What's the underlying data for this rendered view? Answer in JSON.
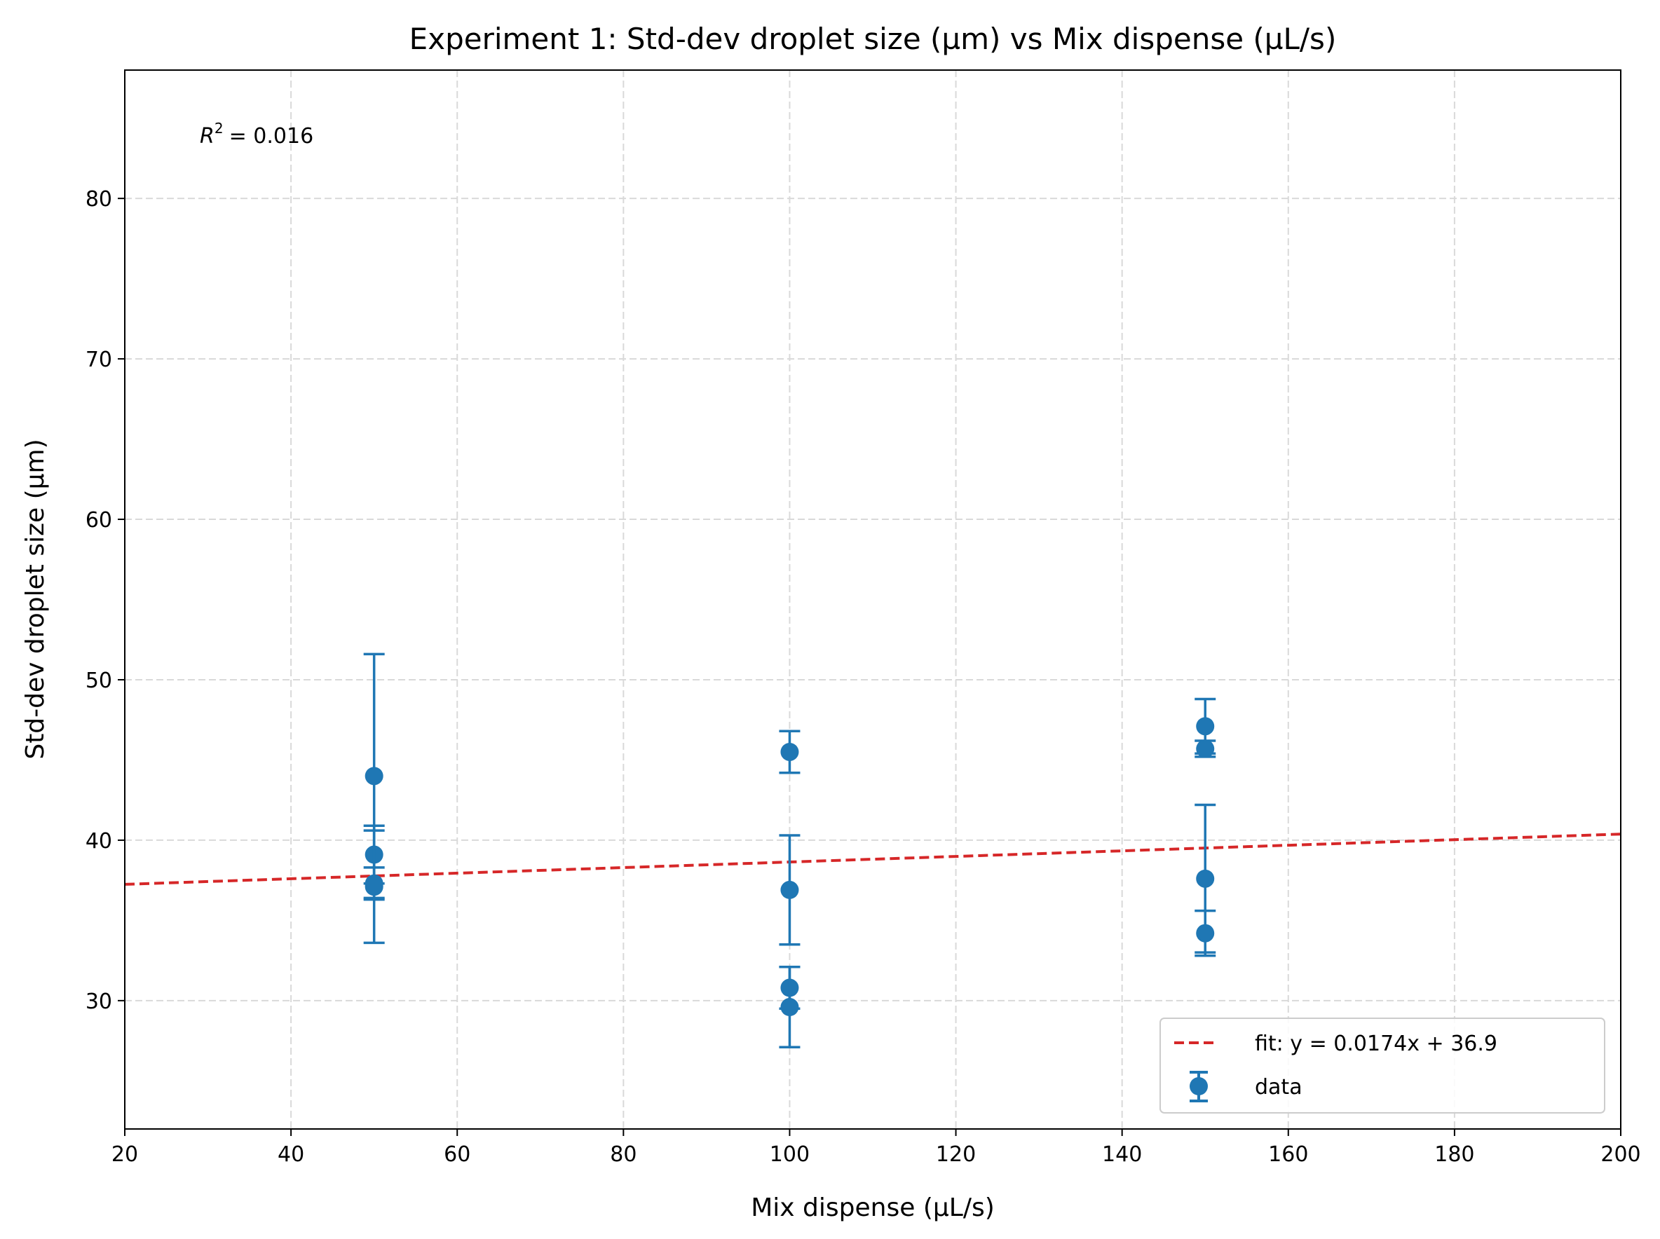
{
  "chart_data": {
    "type": "scatter",
    "title": "Experiment 1: Std-dev droplet size (µm) vs Mix dispense (µL/s)",
    "xlabel": "Mix dispense (µL/s)",
    "ylabel": "Std-dev droplet size (µm)",
    "xlim": [
      20,
      200
    ],
    "ylim": [
      22,
      88
    ],
    "xticks": [
      20,
      40,
      60,
      80,
      100,
      120,
      140,
      160,
      180,
      200
    ],
    "yticks": [
      30,
      40,
      50,
      60,
      70,
      80
    ],
    "grid": true,
    "legend_position": "lower-right",
    "colors": {
      "data": "#1f77b4",
      "fit": "#d62728",
      "grid": "#d9d9d9"
    },
    "annotation_prefix": "R",
    "annotation_exponent": "2",
    "annotation_value": "= 0.016",
    "series": [
      {
        "name": "data",
        "kind": "errorbar",
        "points": [
          {
            "x": 50,
            "y": 44.0,
            "yerr": 7.6
          },
          {
            "x": 50,
            "y": 39.1,
            "yerr": 1.8
          },
          {
            "x": 50,
            "y": 37.3,
            "yerr": 1.0
          },
          {
            "x": 50,
            "y": 37.1,
            "yerr": 3.5
          },
          {
            "x": 100,
            "y": 45.5,
            "yerr": 1.3
          },
          {
            "x": 100,
            "y": 36.9,
            "yerr": 3.4
          },
          {
            "x": 100,
            "y": 30.8,
            "yerr": 1.3
          },
          {
            "x": 100,
            "y": 29.6,
            "yerr": 2.5
          },
          {
            "x": 150,
            "y": 47.1,
            "yerr": 1.7
          },
          {
            "x": 150,
            "y": 45.7,
            "yerr": 0.5
          },
          {
            "x": 150,
            "y": 37.6,
            "yerr": 4.6
          },
          {
            "x": 150,
            "y": 34.2,
            "yerr": 1.4
          }
        ]
      },
      {
        "name": "fit: y = 0.0174x + 36.9",
        "kind": "line",
        "slope": 0.0174,
        "intercept": 36.9
      }
    ]
  }
}
